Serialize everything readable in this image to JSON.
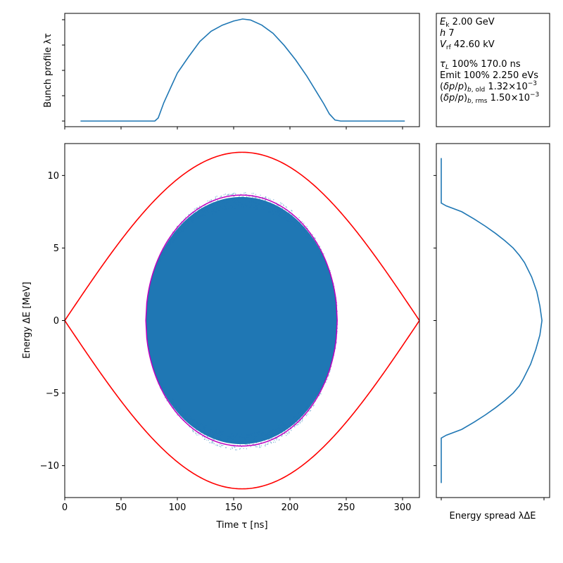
{
  "chart_data": [
    {
      "id": "phase_space",
      "type": "scatter",
      "xlabel": "Time τ [ns]",
      "ylabel": "Energy ΔE [MeV]",
      "xlim": [
        0,
        315
      ],
      "ylim": [
        -12.2,
        12.2
      ],
      "xticks": [
        0,
        50,
        100,
        150,
        200,
        250,
        300
      ],
      "xtick_labels": [
        "0",
        "50",
        "100",
        "150",
        "200",
        "250",
        "300"
      ],
      "yticks": [
        -10,
        -5,
        0,
        5,
        10
      ],
      "ytick_labels": [
        "−10",
        "−5",
        "0",
        "5",
        "10"
      ],
      "separatrix": {
        "color": "#ff0000",
        "x_start": 0,
        "x_end": 315,
        "peak_x": 158,
        "peak_de": 11.6
      },
      "bunch_contour": {
        "color": "#bf00bf",
        "x_min": 72,
        "x_max": 242,
        "center_x": 158,
        "peak_de": 8.65
      },
      "particles": {
        "color": "#1f77b4"
      }
    },
    {
      "id": "bunch_profile",
      "type": "line",
      "ylabel": "Bunch profile λτ",
      "color": "#1f77b4",
      "x": [
        14,
        80,
        83,
        88,
        95,
        100,
        110,
        120,
        130,
        140,
        150,
        158,
        165,
        175,
        185,
        195,
        205,
        215,
        225,
        230,
        235,
        240,
        245,
        302
      ],
      "y": [
        0,
        0,
        0.03,
        0.18,
        0.35,
        0.47,
        0.63,
        0.78,
        0.88,
        0.94,
        0.98,
        1.0,
        0.99,
        0.94,
        0.86,
        0.74,
        0.6,
        0.44,
        0.26,
        0.17,
        0.07,
        0.01,
        0,
        0
      ]
    },
    {
      "id": "energy_spread",
      "type": "line",
      "xlabel": "Energy spread λΔE",
      "color": "#1f77b4",
      "de": [
        -11.2,
        -8.1,
        -7.9,
        -7.5,
        -7.0,
        -6.5,
        -6.0,
        -5.5,
        -5.0,
        -4.5,
        -4.0,
        -3.0,
        -2.0,
        -1.0,
        0,
        1.0,
        2.0,
        3.0,
        4.0,
        4.5,
        5.0,
        5.5,
        6.0,
        6.5,
        7.0,
        7.5,
        7.9,
        8.1,
        11.2
      ],
      "density": [
        0,
        0,
        0.05,
        0.2,
        0.32,
        0.43,
        0.53,
        0.62,
        0.7,
        0.76,
        0.8,
        0.87,
        0.92,
        0.96,
        0.98,
        0.96,
        0.93,
        0.88,
        0.81,
        0.76,
        0.7,
        0.62,
        0.53,
        0.43,
        0.32,
        0.2,
        0.05,
        0,
        0
      ]
    }
  ],
  "info": {
    "ek": "2.00 GeV",
    "h": "7",
    "vrf": "42.60 kV",
    "tau_l": "100% 170.0 ns",
    "emit": "Emit 100% 2.250 eVs",
    "dpp_old": "1.32×10",
    "dpp_old_exp": "−3",
    "dpp_rms": "1.50×10",
    "dpp_rms_exp": "−3"
  }
}
